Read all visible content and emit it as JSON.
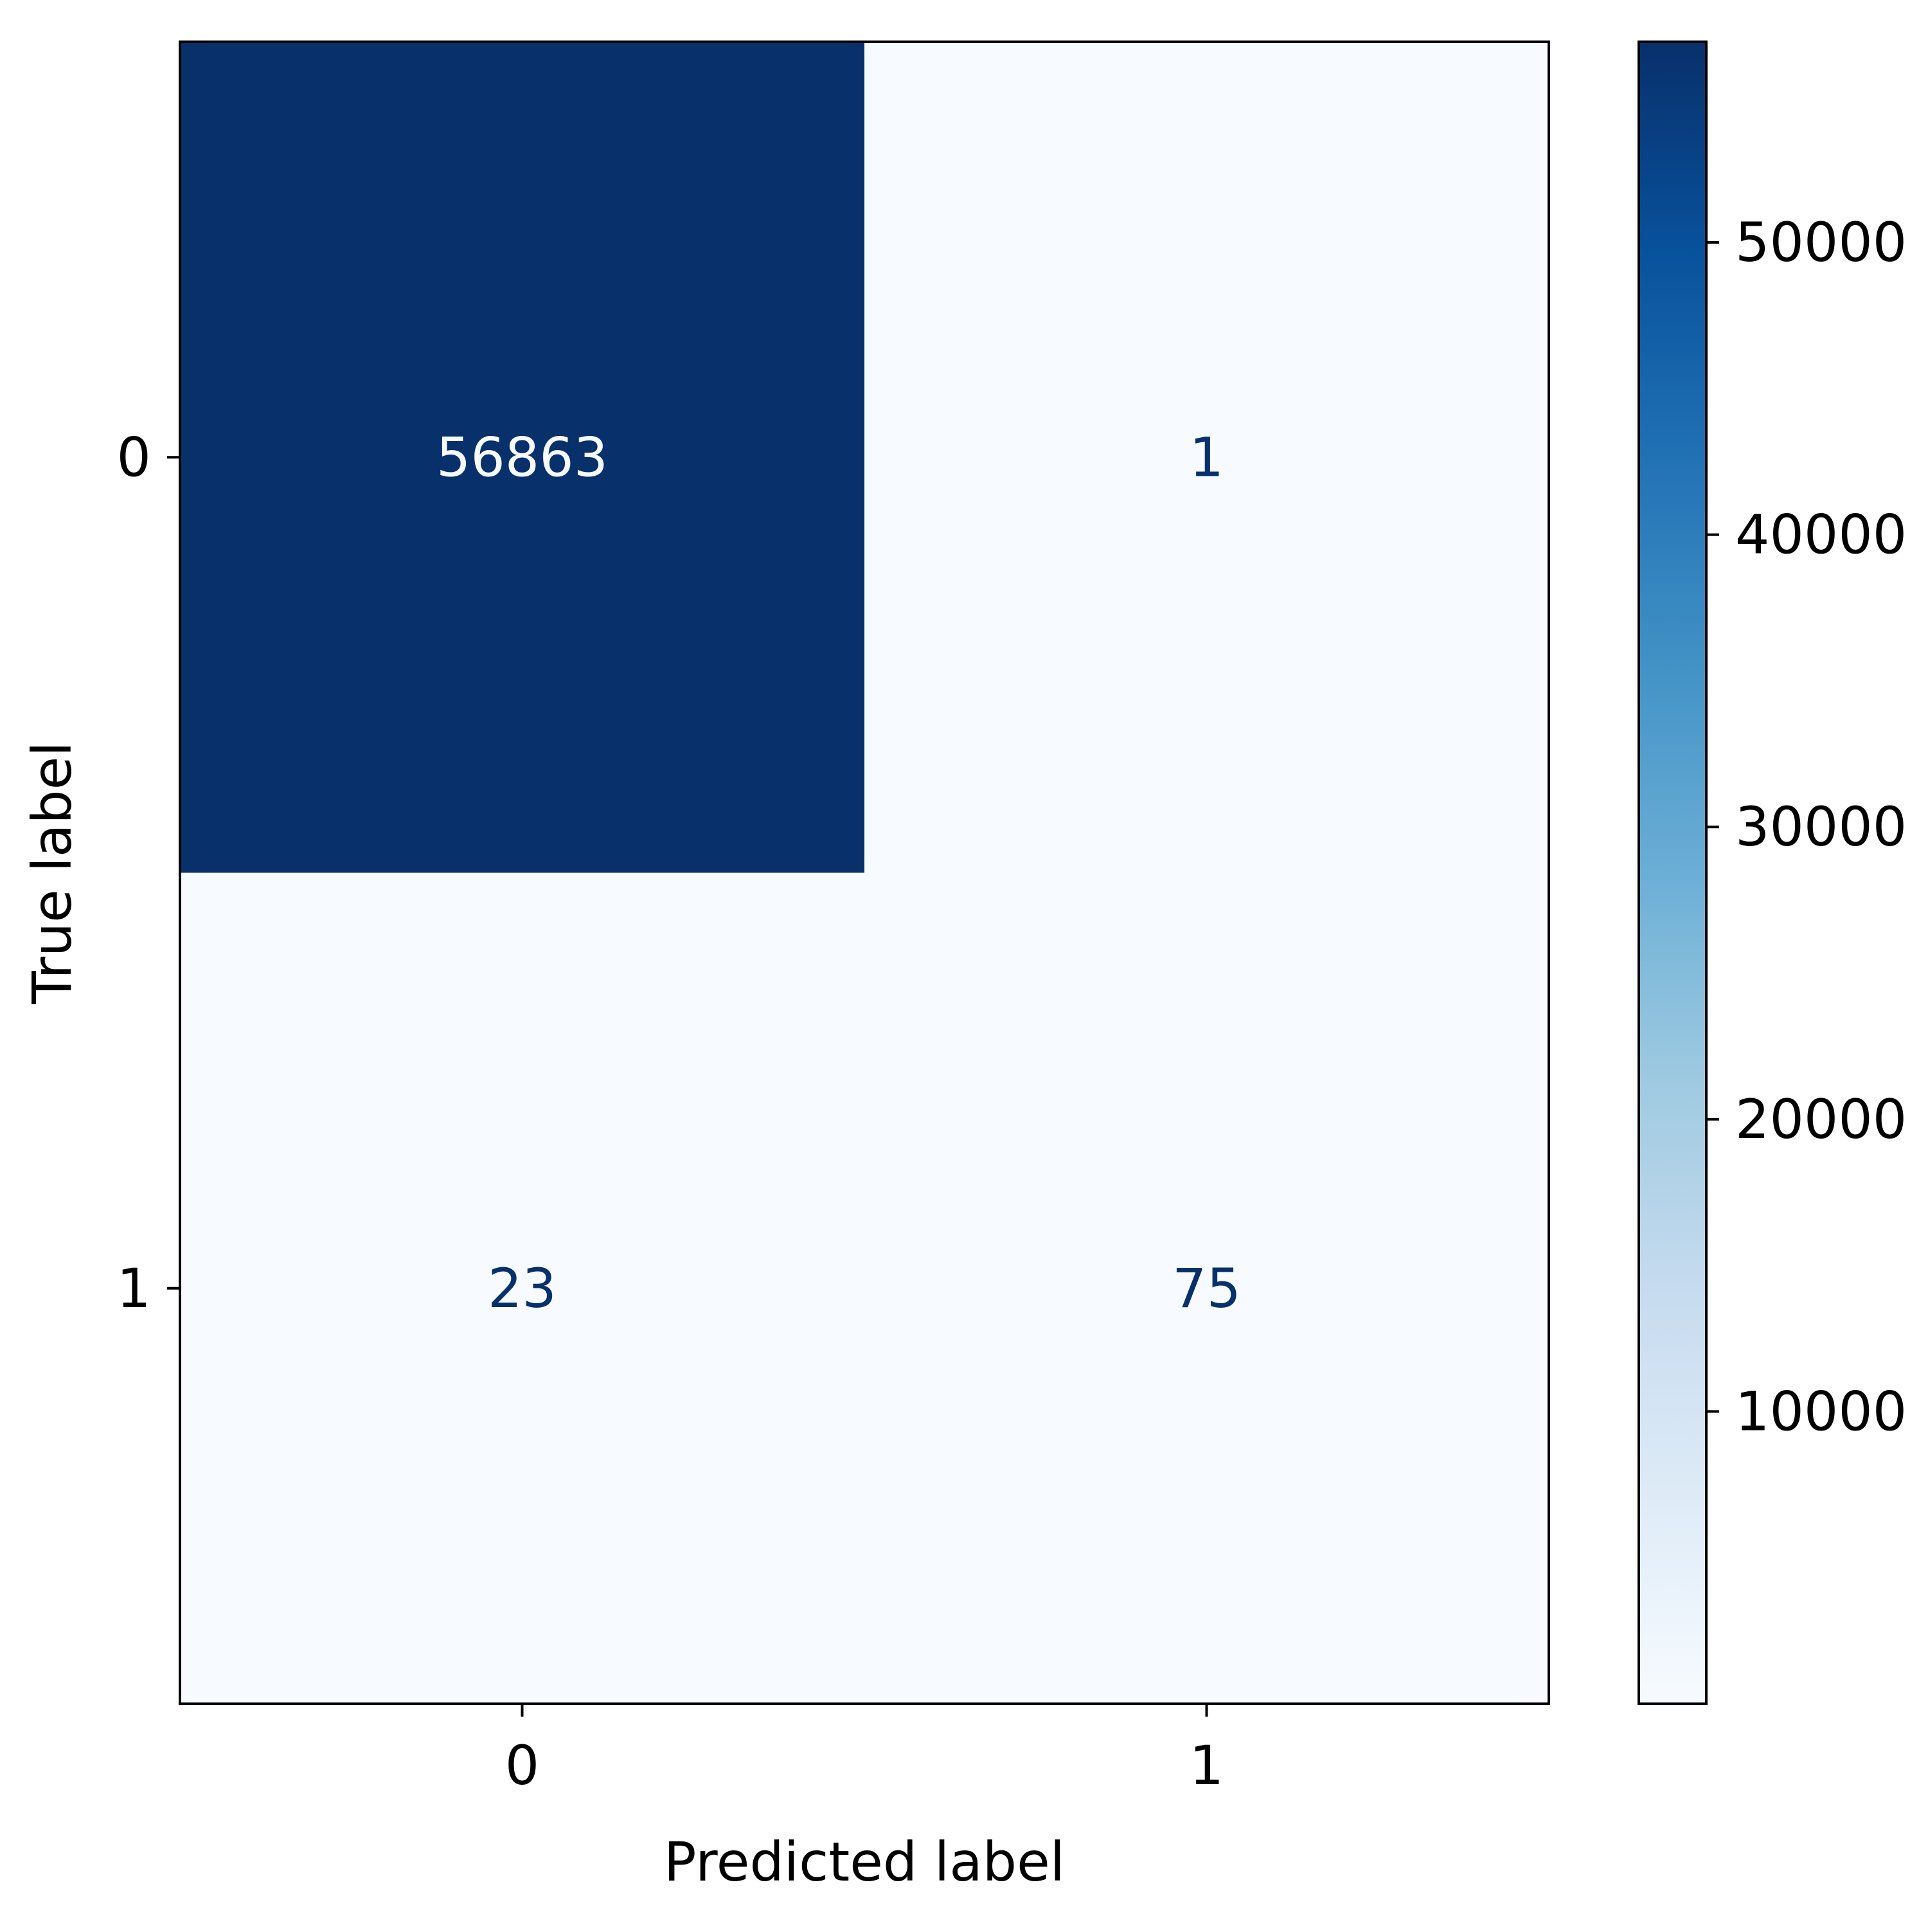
{
  "chart_data": {
    "type": "heatmap",
    "title": "",
    "xlabel": "Predicted label",
    "ylabel": "True label",
    "x_categories": [
      "0",
      "1"
    ],
    "y_categories": [
      "0",
      "1"
    ],
    "values": [
      [
        56863,
        1
      ],
      [
        23,
        75
      ]
    ],
    "cell_labels": [
      [
        "56863",
        "1"
      ],
      [
        "23",
        "75"
      ]
    ],
    "colormap": "Blues",
    "colormap_colors": [
      "#f7fbff",
      "#deebf7",
      "#c6dbef",
      "#9ecae1",
      "#6baed6",
      "#4292c6",
      "#2171b5",
      "#08519c",
      "#08306b"
    ],
    "text_color_light": "#f7fbff",
    "text_color_dark": "#08306b",
    "colorbar": {
      "vmin": 1,
      "vmax": 56863,
      "ticks": [
        10000,
        20000,
        30000,
        40000,
        50000
      ],
      "tick_labels": [
        "10000",
        "20000",
        "30000",
        "40000",
        "50000"
      ]
    },
    "grid": false,
    "legend": "colorbar-right"
  }
}
